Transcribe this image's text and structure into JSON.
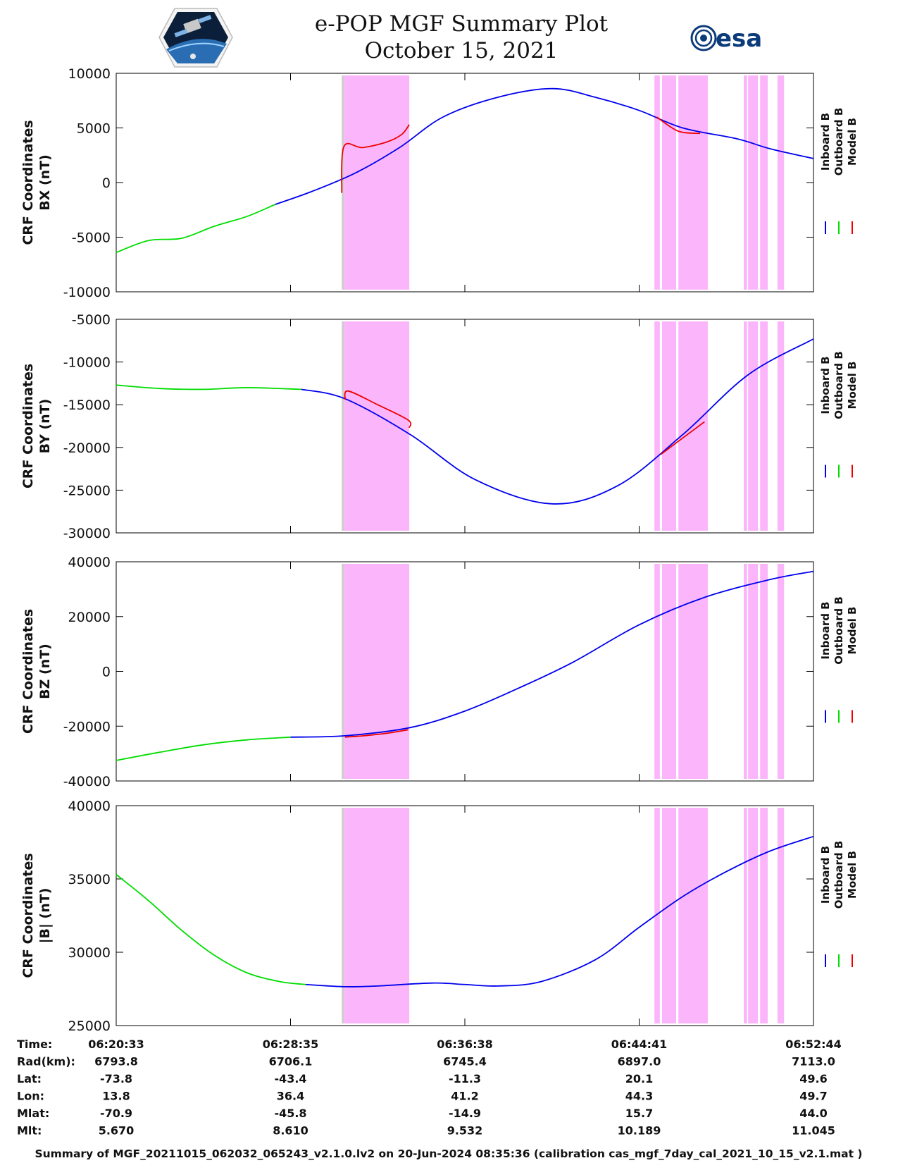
{
  "header": {
    "title_line1": "e-POP MGF Summary Plot",
    "title_line2": "October 15, 2021",
    "left_logo": "cassiope-satellite-logo",
    "right_logo_text": "esa"
  },
  "colors": {
    "inboard": "#0000ee",
    "outboard": "#00dd00",
    "model": "#ee0000",
    "shade": "#fbb6fb",
    "shade_edge": "#cccccc"
  },
  "chart_data": [
    {
      "type": "line",
      "panel": "BX",
      "ylabel_line1": "CRF Coordinates",
      "ylabel_line2": "BX (nT)",
      "ylim": [
        -10000,
        10000
      ],
      "yticks": [
        -10000,
        -5000,
        0,
        5000,
        10000
      ],
      "ytick_labels": [
        "-10000",
        "-5000",
        "0",
        "5000",
        "10000"
      ],
      "legend": [
        "Inboard B",
        "Outboard B",
        "Model B"
      ],
      "series": [
        {
          "name": "Outboard B",
          "color_key": "outboard",
          "x": [
            0,
            1.5,
            3,
            4.5,
            6,
            7.3
          ],
          "values": [
            -6400,
            -5300,
            -5100,
            -4000,
            -3100,
            -2000
          ]
        },
        {
          "name": "Inboard B",
          "color_key": "inboard",
          "x": [
            7.3,
            9,
            11,
            13,
            15,
            17.5,
            20,
            22,
            24,
            26,
            28.5,
            30,
            32
          ],
          "values": [
            -2000,
            -800,
            900,
            3200,
            6000,
            7800,
            8600,
            7800,
            6600,
            5000,
            4000,
            3100,
            2200
          ]
        },
        {
          "name": "Model B",
          "color_key": "model",
          "x": [
            10.35,
            10.45,
            11.3,
            12.4,
            13.1,
            13.45
          ],
          "values": [
            -950,
            3300,
            3200,
            3700,
            4400,
            5300
          ]
        },
        {
          "name": "Model B",
          "color_key": "model",
          "x": [
            24.8,
            25.8,
            26.8
          ],
          "values": [
            6000,
            4700,
            4500
          ]
        }
      ]
    },
    {
      "type": "line",
      "panel": "BY",
      "ylabel_line1": "CRF Coordinates",
      "ylabel_line2": "BY (nT)",
      "ylim": [
        -30000,
        -5000
      ],
      "yticks": [
        -30000,
        -25000,
        -20000,
        -15000,
        -10000,
        -5000
      ],
      "ytick_labels": [
        "-30000",
        "-25000",
        "-20000",
        "-15000",
        "-10000",
        "-5000"
      ],
      "legend": [
        "Inboard B",
        "Outboard B",
        "Model B"
      ],
      "series": [
        {
          "name": "Outboard B",
          "color_key": "outboard",
          "x": [
            0,
            2,
            4,
            6,
            8.5
          ],
          "values": [
            -12700,
            -13100,
            -13200,
            -13000,
            -13200
          ]
        },
        {
          "name": "Inboard B",
          "color_key": "inboard",
          "x": [
            8.5,
            10.5,
            13.5,
            16.5,
            20,
            23,
            26,
            29,
            32
          ],
          "values": [
            -13200,
            -14300,
            -18500,
            -23800,
            -26600,
            -24500,
            -18500,
            -11500,
            -7300
          ]
        },
        {
          "name": "Model B",
          "color_key": "model",
          "x": [
            10.5,
            10.65,
            12,
            13.4,
            13.45
          ],
          "values": [
            -14400,
            -13400,
            -15000,
            -16800,
            -17700
          ]
        },
        {
          "name": "Model B",
          "color_key": "model",
          "x": [
            25,
            26.1,
            27
          ],
          "values": [
            -20800,
            -18700,
            -17000
          ]
        }
      ]
    },
    {
      "type": "line",
      "panel": "BZ",
      "ylabel_line1": "CRF Coordinates",
      "ylabel_line2": "BZ (nT)",
      "ylim": [
        -40000,
        40000
      ],
      "yticks": [
        -40000,
        -20000,
        0,
        20000,
        40000
      ],
      "ytick_labels": [
        "-40000",
        "-20000",
        "0",
        "20000",
        "40000"
      ],
      "legend": [
        "Inboard B",
        "Outboard B",
        "Model B"
      ],
      "series": [
        {
          "name": "Outboard B",
          "color_key": "outboard",
          "x": [
            0,
            2,
            4,
            6,
            8
          ],
          "values": [
            -32500,
            -29500,
            -26800,
            -25000,
            -24000
          ]
        },
        {
          "name": "Inboard B",
          "color_key": "inboard",
          "x": [
            8,
            10.5,
            13.5,
            16,
            18.5,
            21,
            24,
            27,
            30,
            32
          ],
          "values": [
            -24000,
            -23500,
            -20500,
            -14500,
            -6000,
            3500,
            17000,
            27000,
            33500,
            36500
          ]
        },
        {
          "name": "Model B",
          "color_key": "model",
          "x": [
            10.5,
            11.5,
            12.5,
            13.4
          ],
          "values": [
            -24000,
            -23400,
            -22500,
            -21300
          ]
        }
      ]
    },
    {
      "type": "line",
      "panel": "|B|",
      "ylabel_line1": "CRF Coordinates",
      "ylabel_line2": "|B| (nT)",
      "ylim": [
        25000,
        40000
      ],
      "yticks": [
        25000,
        30000,
        35000,
        40000
      ],
      "ytick_labels": [
        "25000",
        "30000",
        "35000",
        "40000"
      ],
      "legend": [
        "Inboard B",
        "Outboard B",
        "Model B"
      ],
      "series": [
        {
          "name": "Outboard B",
          "color_key": "outboard",
          "x": [
            0,
            1.5,
            3,
            4.5,
            6,
            7.5,
            8.7
          ],
          "values": [
            35300,
            33500,
            31500,
            29800,
            28600,
            28000,
            27800
          ]
        },
        {
          "name": "Inboard B",
          "color_key": "inboard",
          "x": [
            8.7,
            10.5,
            12,
            14.5,
            16,
            17.5,
            19.5,
            22,
            24,
            26,
            28,
            30,
            32
          ],
          "values": [
            27800,
            27650,
            27700,
            27900,
            27800,
            27700,
            28000,
            29500,
            31700,
            33800,
            35500,
            36900,
            37900
          ]
        }
      ]
    }
  ],
  "shaded_intervals": [
    [
      10.45,
      13.45
    ],
    [
      24.7,
      24.95
    ],
    [
      25.05,
      25.7
    ],
    [
      25.8,
      27.15
    ],
    [
      28.8,
      28.95
    ],
    [
      29.0,
      29.45
    ],
    [
      29.55,
      29.9
    ],
    [
      30.35,
      30.65
    ]
  ],
  "time_axis": {
    "x_range": [
      0,
      32
    ],
    "tick_positions": [
      0,
      8,
      16,
      24,
      32
    ],
    "rows": [
      {
        "label": "Time:",
        "values": [
          "06:20:33",
          "06:28:35",
          "06:36:38",
          "06:44:41",
          "06:52:44"
        ]
      },
      {
        "label": "Rad(km):",
        "values": [
          "6793.8",
          "6706.1",
          "6745.4",
          "6897.0",
          "7113.0"
        ]
      },
      {
        "label": "Lat:",
        "values": [
          "-73.8",
          "-43.4",
          "-11.3",
          "20.1",
          "49.6"
        ]
      },
      {
        "label": "Lon:",
        "values": [
          "13.8",
          "36.4",
          "41.2",
          "44.3",
          "49.7"
        ]
      },
      {
        "label": "Mlat:",
        "values": [
          "-70.9",
          "-45.8",
          "-14.9",
          "15.7",
          "44.0"
        ]
      },
      {
        "label": "Mlt:",
        "values": [
          "5.670",
          "8.610",
          "9.532",
          "10.189",
          "11.045"
        ]
      }
    ]
  },
  "footer": "Summary of MGF_20211015_062032_065243_v2.1.0.lv2 on 20-Jun-2024 08:35:36 (calibration cas_mgf_7day_cal_2021_10_15_v2.1.mat )"
}
